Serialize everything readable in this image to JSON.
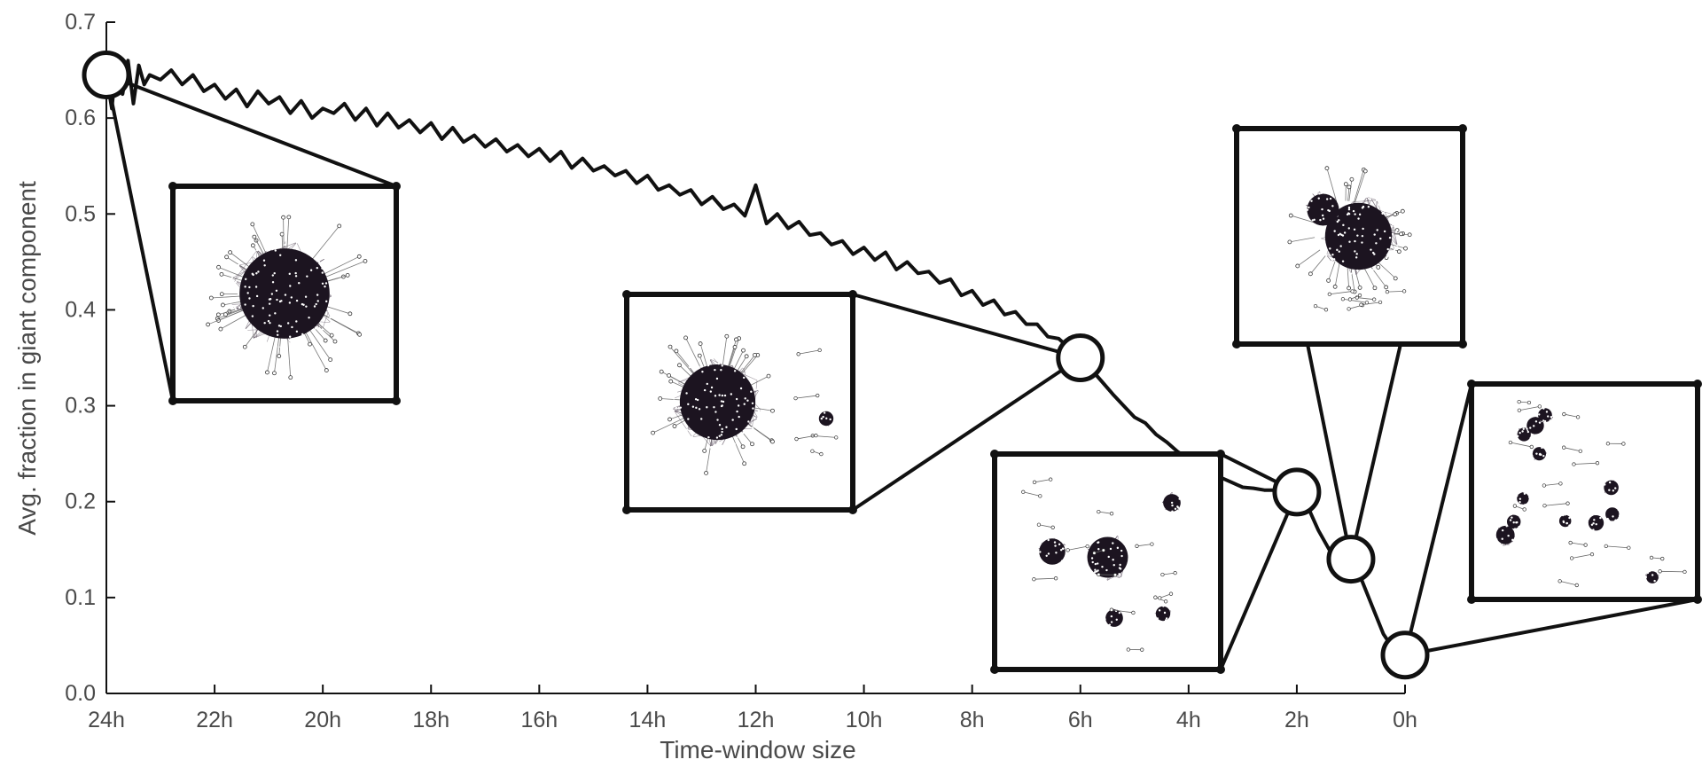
{
  "chart_data": {
    "type": "line",
    "title": "",
    "xlabel": "Time-window size",
    "ylabel": "Avg. fraction in giant component",
    "xlim": [
      24,
      0
    ],
    "ylim": [
      0,
      0.7
    ],
    "x_ticks": [
      "24h",
      "22h",
      "20h",
      "18h",
      "16h",
      "14h",
      "12h",
      "10h",
      "8h",
      "6h",
      "4h",
      "2h",
      "0h"
    ],
    "y_ticks": [
      "0.0",
      "0.1",
      "0.2",
      "0.3",
      "0.4",
      "0.5",
      "0.6",
      "0.7"
    ],
    "grid": false,
    "legend": false,
    "line_color": "#111111",
    "series": [
      {
        "x": [
          24,
          23.9,
          23.8,
          23.7,
          23.6,
          23.5,
          23.4,
          23.3,
          23.2,
          23.0,
          22.8,
          22.6,
          22.4,
          22.2,
          22.0,
          21.8,
          21.6,
          21.4,
          21.2,
          21.0,
          20.8,
          20.6,
          20.4,
          20.2,
          20.0,
          19.8,
          19.6,
          19.4,
          19.2,
          19.0,
          18.8,
          18.6,
          18.4,
          18.2,
          18.0,
          17.8,
          17.6,
          17.4,
          17.2,
          17.0,
          16.8,
          16.6,
          16.4,
          16.2,
          16.0,
          15.8,
          15.6,
          15.4,
          15.2,
          15.0,
          14.8,
          14.6,
          14.4,
          14.2,
          14.0,
          13.8,
          13.6,
          13.4,
          13.2,
          13.0,
          12.8,
          12.6,
          12.4,
          12.2,
          12.0,
          11.8,
          11.6,
          11.4,
          11.2,
          11.0,
          10.8,
          10.6,
          10.4,
          10.2,
          10.0,
          9.8,
          9.6,
          9.4,
          9.2,
          9.0,
          8.8,
          8.6,
          8.4,
          8.2,
          8.0,
          7.8,
          7.6,
          7.4,
          7.2,
          7.0,
          6.8,
          6.6,
          6.4,
          6.2,
          6.0,
          5.8,
          5.6,
          5.4,
          5.2,
          5.0,
          4.8,
          4.6,
          4.4,
          4.2,
          4.0,
          3.8,
          3.6,
          3.4,
          3.2,
          3.0,
          2.8,
          2.6,
          2.4,
          2.2,
          2.0,
          1.8,
          1.6,
          1.4,
          1.2,
          1.0,
          0.8,
          0.6,
          0.4,
          0.2,
          0.0
        ],
        "values": [
          0.645,
          0.61,
          0.665,
          0.625,
          0.66,
          0.615,
          0.655,
          0.635,
          0.645,
          0.64,
          0.65,
          0.635,
          0.645,
          0.628,
          0.635,
          0.62,
          0.63,
          0.612,
          0.628,
          0.615,
          0.622,
          0.605,
          0.618,
          0.6,
          0.61,
          0.605,
          0.615,
          0.598,
          0.61,
          0.592,
          0.605,
          0.59,
          0.598,
          0.585,
          0.595,
          0.578,
          0.59,
          0.575,
          0.582,
          0.57,
          0.578,
          0.565,
          0.572,
          0.56,
          0.568,
          0.555,
          0.565,
          0.548,
          0.558,
          0.545,
          0.55,
          0.54,
          0.545,
          0.532,
          0.54,
          0.525,
          0.53,
          0.52,
          0.525,
          0.51,
          0.518,
          0.505,
          0.51,
          0.498,
          0.53,
          0.49,
          0.5,
          0.485,
          0.492,
          0.478,
          0.48,
          0.468,
          0.472,
          0.458,
          0.465,
          0.452,
          0.46,
          0.442,
          0.45,
          0.438,
          0.44,
          0.428,
          0.432,
          0.415,
          0.42,
          0.405,
          0.41,
          0.395,
          0.398,
          0.385,
          0.385,
          0.372,
          0.37,
          0.36,
          0.35,
          0.338,
          0.325,
          0.312,
          0.3,
          0.288,
          0.282,
          0.27,
          0.262,
          0.252,
          0.245,
          0.238,
          0.232,
          0.225,
          0.22,
          0.215,
          0.214,
          0.212,
          0.212,
          0.21,
          0.21,
          0.195,
          0.17,
          0.15,
          0.14,
          0.135,
          0.118,
          0.09,
          0.062,
          0.045,
          0.04
        ]
      }
    ],
    "highlighted_points": [
      {
        "x": 24,
        "y": 0.645
      },
      {
        "x": 6,
        "y": 0.35
      },
      {
        "x": 2,
        "y": 0.21
      },
      {
        "x": 1,
        "y": 0.14
      },
      {
        "x": 0,
        "y": 0.04
      }
    ],
    "network_insets": [
      {
        "point": 0,
        "depicts": "single dense connected cluster"
      },
      {
        "point": 1,
        "depicts": "large dense cluster with a few small components"
      },
      {
        "point": 2,
        "depicts": "several medium clusters and many small components"
      },
      {
        "point": 3,
        "depicts": "dense core cluster with surrounding small components"
      },
      {
        "point": 4,
        "depicts": "many small fragmented components"
      }
    ]
  }
}
